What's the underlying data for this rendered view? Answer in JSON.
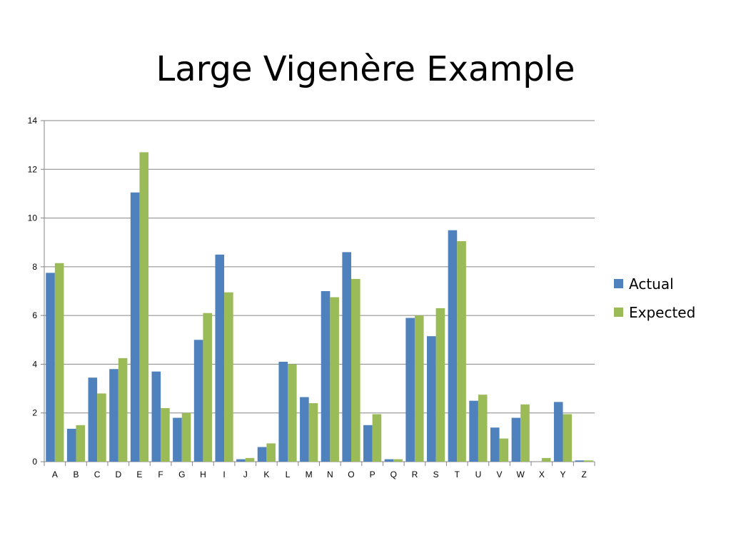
{
  "slide": {
    "title": "Large Vigenère Example"
  },
  "chart_data": {
    "type": "bar",
    "title": "Large Vigenère Example",
    "xlabel": "",
    "ylabel": "",
    "ylim": [
      0,
      14
    ],
    "yticks": [
      0,
      2,
      4,
      6,
      8,
      10,
      12,
      14
    ],
    "grid": true,
    "legend_position": "right",
    "categories": [
      "A",
      "B",
      "C",
      "D",
      "E",
      "F",
      "G",
      "H",
      "I",
      "J",
      "K",
      "L",
      "M",
      "N",
      "O",
      "P",
      "Q",
      "R",
      "S",
      "T",
      "U",
      "V",
      "W",
      "X",
      "Y",
      "Z"
    ],
    "series": [
      {
        "name": "Actual",
        "color": "#4f81bd",
        "values": [
          7.75,
          1.35,
          3.45,
          3.8,
          11.05,
          3.7,
          1.8,
          5.0,
          8.5,
          0.1,
          0.6,
          4.1,
          2.65,
          7.0,
          8.6,
          1.5,
          0.1,
          5.9,
          5.15,
          9.5,
          2.5,
          1.4,
          1.8,
          0.0,
          2.45,
          0.05
        ]
      },
      {
        "name": "Expected",
        "color": "#9bbb59",
        "values": [
          8.15,
          1.5,
          2.8,
          4.25,
          12.7,
          2.2,
          2.0,
          6.1,
          6.95,
          0.15,
          0.75,
          4.0,
          2.4,
          6.75,
          7.5,
          1.95,
          0.1,
          6.0,
          6.3,
          9.05,
          2.75,
          0.95,
          2.35,
          0.15,
          1.95,
          0.05
        ]
      }
    ]
  }
}
